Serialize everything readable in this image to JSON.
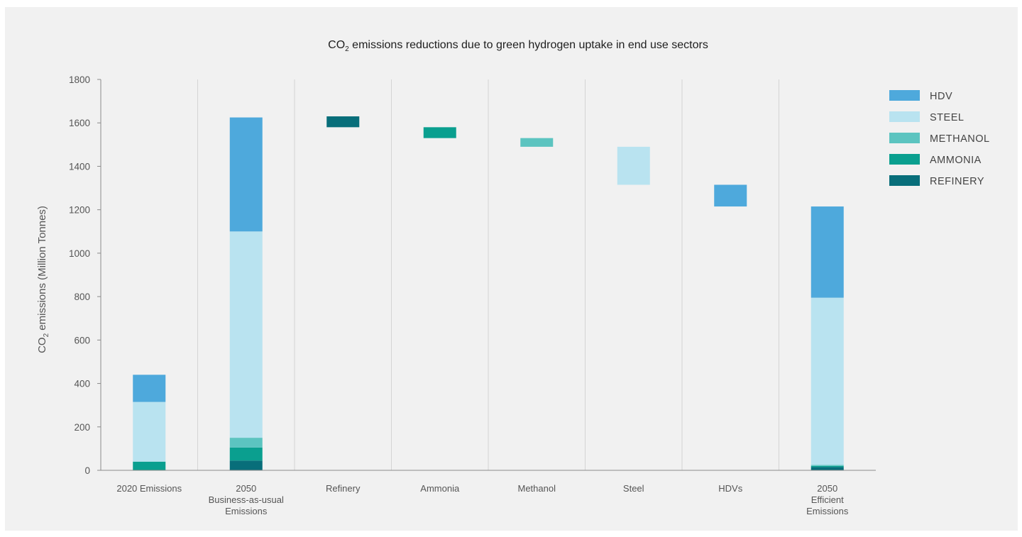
{
  "chart_data": {
    "type": "bar",
    "subtype": "stacked waterfall",
    "title": "CO2 emissions reductions due to green hydrogen uptake in end use sectors",
    "ylabel": "CO2 emissions (Million Tonnes)",
    "ylim": [
      0,
      1800
    ],
    "yticks": [
      0,
      200,
      400,
      600,
      800,
      1000,
      1200,
      1400,
      1600,
      1800
    ],
    "grid": false,
    "legend_position": "right",
    "categories": [
      [
        "2020 Emissions"
      ],
      [
        "2050",
        "Business-as-usual",
        "Emissions"
      ],
      [
        "Refinery"
      ],
      [
        "Ammonia"
      ],
      [
        "Methanol"
      ],
      [
        "Steel"
      ],
      [
        "HDVs"
      ],
      [
        "2050",
        "Efficient",
        "Emissions"
      ]
    ],
    "series": [
      {
        "name": "HDV",
        "color": "#4ea9dc"
      },
      {
        "name": "STEEL",
        "color": "#b9e3f0"
      },
      {
        "name": "METHANOL",
        "color": "#5cc4c0"
      },
      {
        "name": "AMMONIA",
        "color": "#0a9f8f"
      },
      {
        "name": "REFINERY",
        "color": "#086e7a"
      }
    ],
    "stacks": [
      {
        "category_index": 0,
        "segments": [
          {
            "series": "REFINERY",
            "value": 0
          },
          {
            "series": "AMMONIA",
            "value": 40
          },
          {
            "series": "METHANOL",
            "value": 0
          },
          {
            "series": "STEEL",
            "value": 275
          },
          {
            "series": "HDV",
            "value": 125
          }
        ]
      },
      {
        "category_index": 1,
        "segments": [
          {
            "series": "REFINERY",
            "value": 45
          },
          {
            "series": "AMMONIA",
            "value": 60
          },
          {
            "series": "METHANOL",
            "value": 45
          },
          {
            "series": "STEEL",
            "value": 950
          },
          {
            "series": "HDV",
            "value": 525
          }
        ]
      },
      {
        "category_index": 7,
        "segments": [
          {
            "series": "REFINERY",
            "value": 15
          },
          {
            "series": "AMMONIA",
            "value": 5
          },
          {
            "series": "METHANOL",
            "value": 5
          },
          {
            "series": "STEEL",
            "value": 770
          },
          {
            "series": "HDV",
            "value": 420
          }
        ]
      }
    ],
    "floating": [
      {
        "category_index": 2,
        "series": "REFINERY",
        "from": 1580,
        "to": 1630
      },
      {
        "category_index": 3,
        "series": "AMMONIA",
        "from": 1530,
        "to": 1580
      },
      {
        "category_index": 4,
        "series": "METHANOL",
        "from": 1490,
        "to": 1530
      },
      {
        "category_index": 5,
        "series": "STEEL",
        "from": 1315,
        "to": 1490
      },
      {
        "category_index": 6,
        "series": "HDV",
        "from": 1215,
        "to": 1315
      }
    ]
  }
}
